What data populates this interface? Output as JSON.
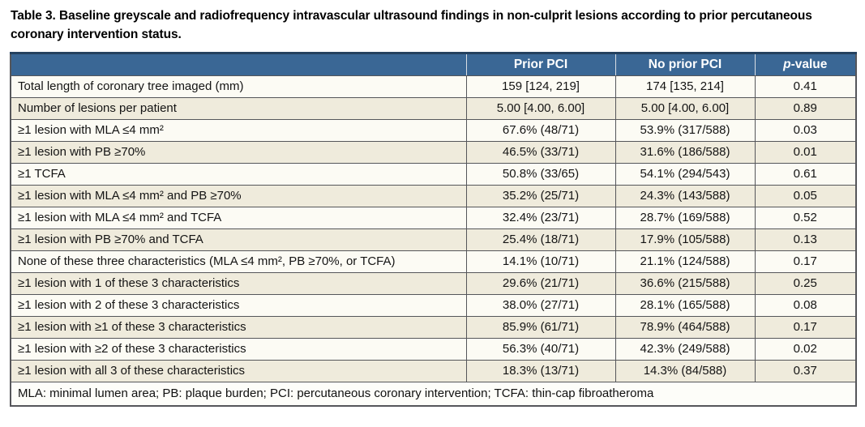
{
  "title": "Table 3. Baseline greyscale and radiofrequency intravascular ultrasound findings in non-culprit lesions according to prior percutaneous coronary intervention status.",
  "colors": {
    "header_bg": "#3a6795",
    "header_text": "#ffffff",
    "row_odd_bg": "#fcfbf4",
    "row_even_bg": "#efebdc",
    "border": "#55565a",
    "top_border": "#24415f"
  },
  "table": {
    "columns": [
      "",
      "Prior PCI",
      "No prior PCI",
      "p-value"
    ],
    "p_value_header": {
      "italic": "p",
      "rest": "-value"
    },
    "rows": [
      {
        "label": "Total length of coronary tree imaged (mm)",
        "prior_pci": "159 [124, 219]",
        "no_prior_pci": "174 [135, 214]",
        "p_value": "0.41"
      },
      {
        "label": "Number of lesions per patient",
        "prior_pci": "5.00 [4.00, 6.00]",
        "no_prior_pci": "5.00 [4.00, 6.00]",
        "p_value": "0.89"
      },
      {
        "label": "≥1 lesion with MLA ≤4 mm²",
        "prior_pci": "67.6% (48/71)",
        "no_prior_pci": "53.9% (317/588)",
        "p_value": "0.03"
      },
      {
        "label": "≥1 lesion with PB ≥70%",
        "prior_pci": "46.5% (33/71)",
        "no_prior_pci": "31.6% (186/588)",
        "p_value": "0.01"
      },
      {
        "label": "≥1 TCFA",
        "prior_pci": "50.8% (33/65)",
        "no_prior_pci": "54.1% (294/543)",
        "p_value": "0.61"
      },
      {
        "label": "≥1 lesion with MLA ≤4 mm² and PB ≥70%",
        "prior_pci": "35.2% (25/71)",
        "no_prior_pci": "24.3% (143/588)",
        "p_value": "0.05"
      },
      {
        "label": "≥1 lesion with MLA ≤4 mm² and TCFA",
        "prior_pci": "32.4% (23/71)",
        "no_prior_pci": "28.7% (169/588)",
        "p_value": "0.52"
      },
      {
        "label": "≥1 lesion with PB ≥70% and TCFA",
        "prior_pci": "25.4% (18/71)",
        "no_prior_pci": "17.9% (105/588)",
        "p_value": "0.13"
      },
      {
        "label": "None of these three characteristics (MLA ≤4 mm², PB ≥70%, or TCFA)",
        "prior_pci": "14.1% (10/71)",
        "no_prior_pci": "21.1% (124/588)",
        "p_value": "0.17"
      },
      {
        "label": "≥1 lesion with 1 of these 3 characteristics",
        "prior_pci": "29.6% (21/71)",
        "no_prior_pci": "36.6% (215/588)",
        "p_value": "0.25"
      },
      {
        "label": "≥1 lesion with 2 of these 3 characteristics",
        "prior_pci": "38.0% (27/71)",
        "no_prior_pci": "28.1% (165/588)",
        "p_value": "0.08"
      },
      {
        "label": "≥1 lesion with ≥1 of these 3 characteristics",
        "prior_pci": "85.9% (61/71)",
        "no_prior_pci": "78.9% (464/588)",
        "p_value": "0.17"
      },
      {
        "label": "≥1 lesion with ≥2 of these 3 characteristics",
        "prior_pci": "56.3% (40/71)",
        "no_prior_pci": "42.3% (249/588)",
        "p_value": "0.02"
      },
      {
        "label": "≥1 lesion with all 3 of these characteristics",
        "prior_pci": "18.3% (13/71)",
        "no_prior_pci": "14.3% (84/588)",
        "p_value": "0.37"
      }
    ],
    "footnote": "MLA: minimal lumen area; PB: plaque burden; PCI: percutaneous coronary intervention; TCFA: thin-cap fibroatheroma"
  }
}
